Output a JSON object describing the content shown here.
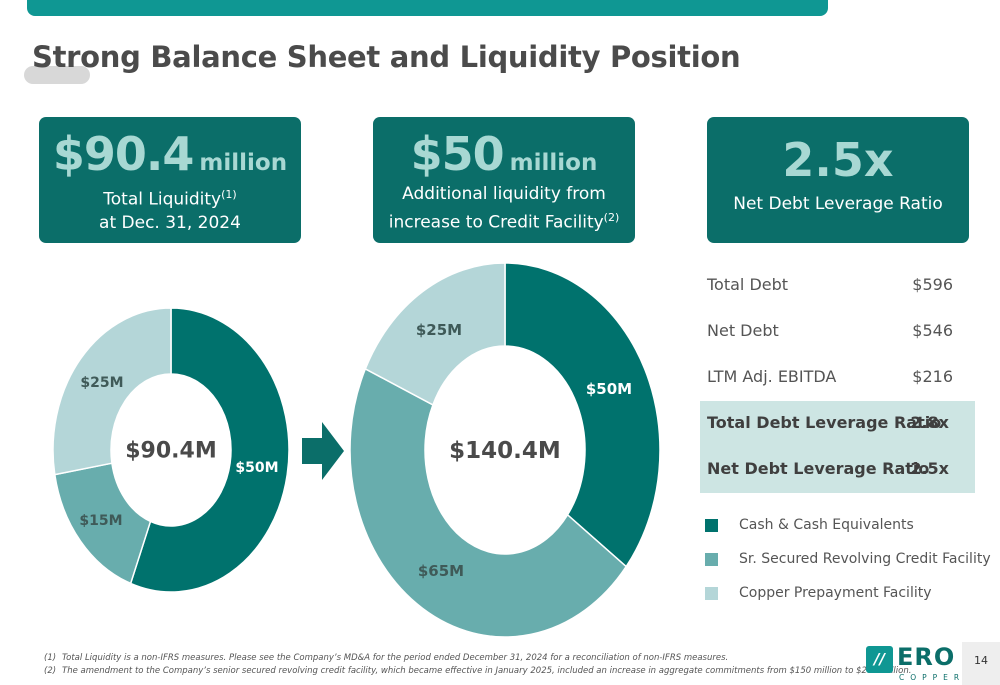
{
  "page": {
    "title": "Strong Balance Sheet and Liquidity Position",
    "page_number": "14"
  },
  "cards": [
    {
      "value": "$90.4",
      "unit": "million",
      "line1": "Total Liquidity",
      "sup1": "(1)",
      "line2": "at Dec. 31, 2024"
    },
    {
      "value": "$50",
      "unit": "million",
      "line1": "Additional liquidity from",
      "line2": "increase to Credit Facility",
      "sup2": "(2)"
    },
    {
      "value": "2.5x",
      "line1": "Net Debt Leverage Ratio"
    }
  ],
  "colors": {
    "cash": "#00726d",
    "revolver": "#68adad",
    "prepay": "#b4d6d8"
  },
  "chart_data": [
    {
      "type": "pie",
      "center_label": "$90.4M",
      "slices": [
        {
          "label": "$50M",
          "value": 50,
          "series": "Cash & Cash Equivalents"
        },
        {
          "label": "$15M",
          "value": 15,
          "series": "Sr. Secured Revolving Credit Facility"
        },
        {
          "label": "$25M",
          "value": 25,
          "series": "Copper Prepayment Facility"
        }
      ]
    },
    {
      "type": "pie",
      "center_label": "$140.4M",
      "slices": [
        {
          "label": "$50M",
          "value": 50,
          "series": "Cash & Cash Equivalents"
        },
        {
          "label": "$65M",
          "value": 65,
          "series": "Sr. Secured Revolving Credit Facility"
        },
        {
          "label": "$25M",
          "value": 25,
          "series": "Copper Prepayment Facility"
        }
      ]
    }
  ],
  "table": [
    {
      "label": "Total Debt",
      "value": "$596",
      "highlight": false
    },
    {
      "label": "Net Debt",
      "value": "$546",
      "highlight": false
    },
    {
      "label": "LTM Adj. EBITDA",
      "value": "$216",
      "highlight": false
    },
    {
      "label": "Total Debt Leverage Ratio",
      "value": "2.8x",
      "highlight": true
    },
    {
      "label": "Net Debt Leverage Ratio",
      "value": "2.5x",
      "highlight": true
    }
  ],
  "legend": [
    {
      "label": "Cash & Cash Equivalents",
      "color": "#00726d"
    },
    {
      "label": "Sr. Secured Revolving Credit Facility",
      "color": "#68adad"
    },
    {
      "label": "Copper Prepayment Facility",
      "color": "#b4d6d8"
    }
  ],
  "footnotes": [
    {
      "num": "(1)",
      "text": "Total Liquidity is a non-IFRS measures. Please see the Company’s MD&A for the period ended December 31, 2024 for a reconciliation of non-IFRS measures."
    },
    {
      "num": "(2)",
      "text": "The amendment to the Company’s senior secured revolving credit facility, which became effective in January 2025, included an increase in aggregate commitments from $150 million to $200 million."
    }
  ],
  "logo": {
    "mark": "//",
    "word": "ERO",
    "sub": "COPPER"
  }
}
